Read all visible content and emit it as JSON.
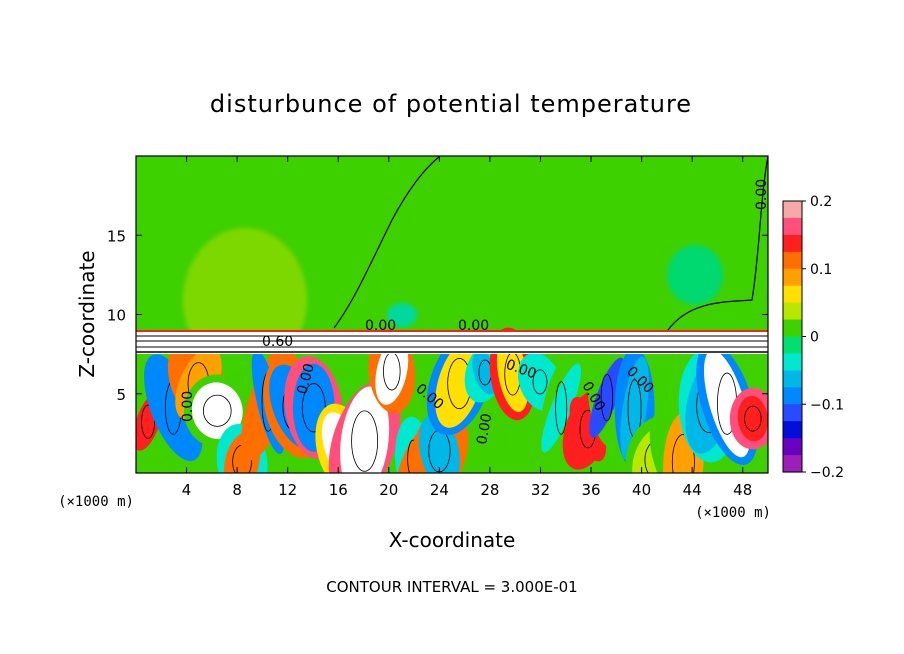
{
  "chart_data": {
    "type": "heatmap",
    "title": "disturbunce of potential temperature",
    "xlabel": "X-coordinate",
    "ylabel": "Z-coordinate",
    "x_unit": "(×1000 m)",
    "xlim": [
      0,
      50
    ],
    "ylim": [
      0,
      20
    ],
    "x_ticks": [
      4,
      8,
      12,
      16,
      20,
      24,
      28,
      32,
      36,
      40,
      44,
      48
    ],
    "y_ticks": [
      5,
      10,
      15
    ],
    "footer": "CONTOUR INTERVAL = 3.000E-01",
    "colorbar": {
      "min": -0.2,
      "max": 0.2,
      "tick_values": [
        0.2,
        0.1,
        0,
        -0.1,
        -0.2
      ],
      "tick_labels": [
        "0.2",
        "0.1",
        "0",
        "−0.1",
        "−0.2"
      ],
      "colors": [
        "#f8a8a8",
        "#ff4f7a",
        "#ff1f1f",
        "#ff6f00",
        "#ff9f00",
        "#ffe000",
        "#b8e800",
        "#3fd000",
        "#00e070",
        "#00e8d0",
        "#00b8e8",
        "#0088ff",
        "#2a4aff",
        "#0010d8",
        "#6a00c0",
        "#9b1fb8"
      ]
    },
    "contour_labels": [
      "0.00",
      "0.00",
      "0.00",
      "0.60",
      "0.00",
      "0.00",
      "0.00",
      "0.00",
      "0.00",
      "0.00",
      "0.00"
    ]
  }
}
